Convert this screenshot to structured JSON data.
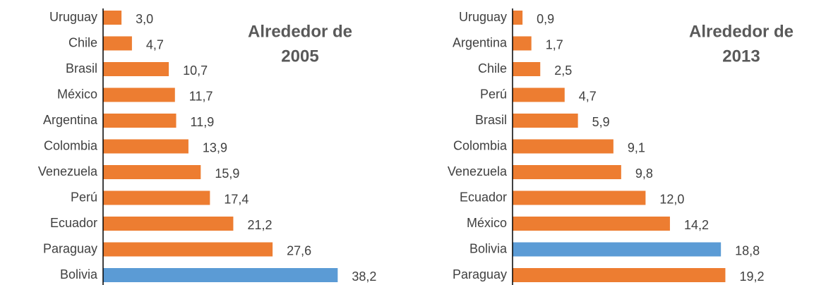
{
  "chart_data": [
    {
      "type": "bar",
      "orientation": "horizontal",
      "annotation": [
        "Alrededor de",
        "2005"
      ],
      "categories": [
        "Uruguay",
        "Chile",
        "Brasil",
        "México",
        "Argentina",
        "Colombia",
        "Venezuela",
        "Perú",
        "Ecuador",
        "Paraguay",
        "Bolivia"
      ],
      "values": [
        3.0,
        4.7,
        10.7,
        11.7,
        11.9,
        13.9,
        15.9,
        17.4,
        21.2,
        27.6,
        38.2
      ],
      "value_labels": [
        "3,0",
        "4,7",
        "10,7",
        "11,7",
        "11,9",
        "13,9",
        "15,9",
        "17,4",
        "21,2",
        "27,6",
        "38,2"
      ],
      "colors": [
        "#ed7d31",
        "#ed7d31",
        "#ed7d31",
        "#ed7d31",
        "#ed7d31",
        "#ed7d31",
        "#ed7d31",
        "#ed7d31",
        "#ed7d31",
        "#ed7d31",
        "#5b9bd5"
      ],
      "xlim": [
        0,
        40
      ]
    },
    {
      "type": "bar",
      "orientation": "horizontal",
      "annotation": [
        "Alrededor de",
        "2013"
      ],
      "categories": [
        "Uruguay",
        "Argentina",
        "Chile",
        "Perú",
        "Brasil",
        "Colombia",
        "Venezuela",
        "Ecuador",
        "México",
        "Bolivia",
        "Paraguay"
      ],
      "values": [
        0.9,
        1.7,
        2.5,
        4.7,
        5.9,
        9.1,
        9.8,
        12.0,
        14.2,
        18.8,
        19.2
      ],
      "value_labels": [
        "0,9",
        "1,7",
        "2,5",
        "4,7",
        "5,9",
        "9,1",
        "9,8",
        "12,0",
        "14,2",
        "18,8",
        "19,2"
      ],
      "colors": [
        "#ed7d31",
        "#ed7d31",
        "#ed7d31",
        "#ed7d31",
        "#ed7d31",
        "#ed7d31",
        "#ed7d31",
        "#ed7d31",
        "#ed7d31",
        "#5b9bd5",
        "#ed7d31"
      ],
      "xlim": [
        0,
        20
      ]
    }
  ]
}
